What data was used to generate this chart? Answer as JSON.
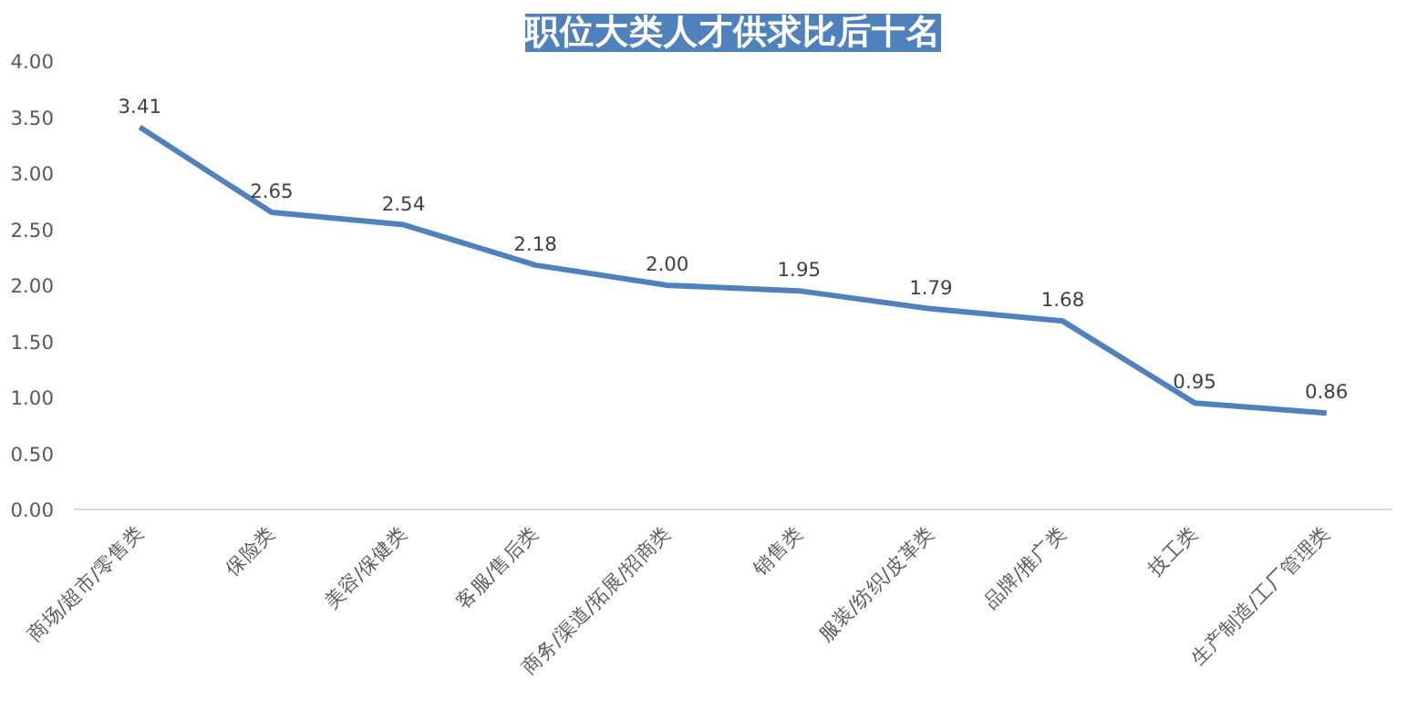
{
  "chart_data": {
    "type": "line",
    "title": "职位大类人才供求比后十名",
    "categories": [
      "商场/超市/零售类",
      "保险类",
      "美容/保健类",
      "客服/售后类",
      "商务/渠道/拓展/招商类",
      "销售类",
      "服装/纺织/皮革类",
      "品牌/推广类",
      "技工类",
      "生产制造/工厂管理类"
    ],
    "series": [
      {
        "color": "#4f81bd",
        "values": [
          3.41,
          2.65,
          2.54,
          2.18,
          2.0,
          1.95,
          1.79,
          1.68,
          0.95,
          0.86
        ]
      }
    ],
    "ylim": [
      0,
      4
    ],
    "yticks": [
      {
        "value": 0,
        "label": "0.00"
      },
      {
        "value": 0.5,
        "label": "0.50"
      },
      {
        "value": 1,
        "label": "1.00"
      },
      {
        "value": 1.5,
        "label": "1.50"
      },
      {
        "value": 2,
        "label": "2.00"
      },
      {
        "value": 2.5,
        "label": "2.50"
      },
      {
        "value": 3,
        "label": "3.00"
      },
      {
        "value": 3.5,
        "label": "3.50"
      },
      {
        "value": 4,
        "label": "4.00"
      }
    ],
    "value_labels": [
      "3.41",
      "2.65",
      "2.54",
      "2.18",
      "2.00",
      "1.95",
      "1.79",
      "1.68",
      "0.95",
      "0.86"
    ],
    "grid": false,
    "marker": "none",
    "line_style": "solid"
  }
}
